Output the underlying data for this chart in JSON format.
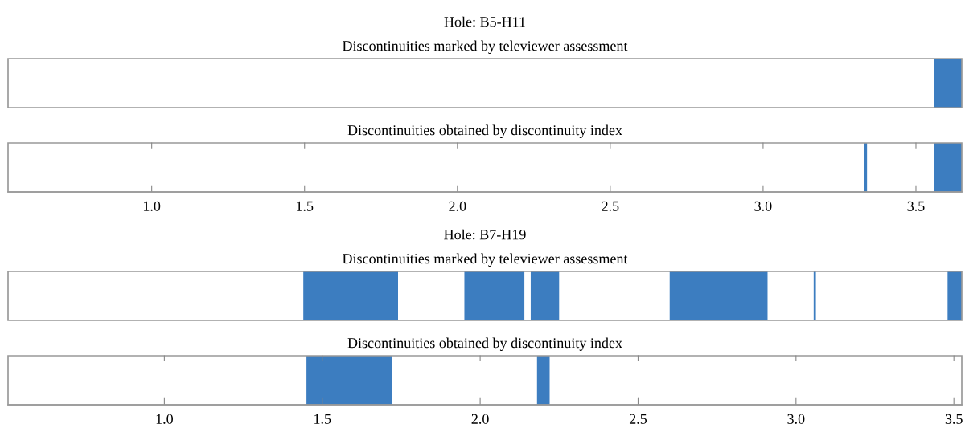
{
  "chart_data": [
    {
      "type": "bar",
      "orientation": "horizontal",
      "title": "Hole: B5-H11",
      "categories": [
        "Discontinuities marked by televiewer assessment",
        "Discontinuities obtained by discontinuity index"
      ],
      "xlim": [
        0.53,
        3.65
      ],
      "xticks": [
        {
          "value": 1.0,
          "label": "1.0"
        },
        1.5,
        {
          "value": 2.0,
          "label": "2.0"
        },
        2.5,
        {
          "value": 3.0,
          "label": "3.0"
        },
        3.5
      ],
      "series": [
        {
          "color": "#3c7dc0",
          "base": [
            3.56,
            3.33
          ],
          "values": [
            0.09,
            0.01
          ]
        },
        {
          "color": "#3c7dc0",
          "base": [
            null,
            3.56
          ],
          "values": [
            null,
            0.09
          ]
        }
      ]
    },
    {
      "type": "bar",
      "orientation": "horizontal",
      "title": "Hole: B7-H19",
      "categories": [
        "Discontinuities marked by televiewer assessment",
        "Discontinuities obtained by discontinuity index"
      ],
      "xlim": [
        0.505,
        3.525
      ],
      "xticks": [
        {
          "value": 1.0,
          "label": "1.0"
        },
        1.5,
        {
          "value": 2.0,
          "label": "2.0"
        },
        2.5,
        {
          "value": 3.0,
          "label": "3.0"
        },
        3.5
      ],
      "series": [
        {
          "color": "#3c7dc0",
          "base": [
            1.44,
            1.45
          ],
          "values": [
            0.3,
            0.27
          ]
        },
        {
          "color": "#3c7dc0",
          "base": [
            1.95,
            2.18
          ],
          "values": [
            0.19,
            0.04
          ]
        },
        {
          "color": "#3c7dc0",
          "base": [
            2.16,
            null
          ],
          "values": [
            0.09,
            null
          ]
        },
        {
          "color": "#3c7dc0",
          "base": [
            2.6,
            null
          ],
          "values": [
            0.31,
            null
          ]
        },
        {
          "color": "#3c7dc0",
          "base": [
            3.056,
            null
          ],
          "values": [
            0.007,
            null
          ]
        },
        {
          "color": "#3c7dc0",
          "base": [
            3.48,
            null
          ],
          "values": [
            0.045,
            null
          ]
        }
      ]
    }
  ]
}
